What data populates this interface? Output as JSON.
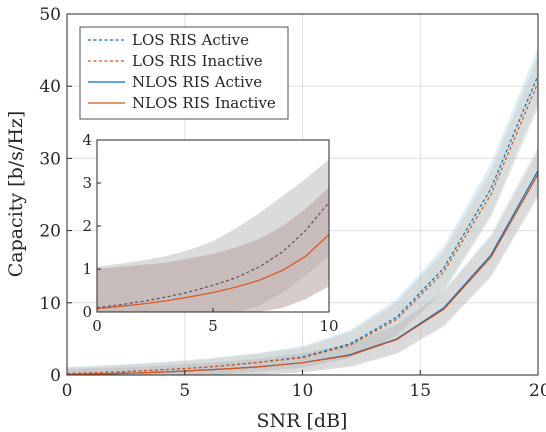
{
  "chart_data": [
    {
      "type": "line",
      "role": "main",
      "xlabel": "SNR [dB]",
      "ylabel": "Capacity [b/s/Hz]",
      "xlim": [
        0,
        20
      ],
      "ylim": [
        0,
        50
      ],
      "xticks": [
        0,
        5,
        10,
        15,
        20
      ],
      "yticks": [
        0,
        10,
        20,
        30,
        40,
        50
      ],
      "xtick_labels": [
        "0",
        "5",
        "10",
        "15",
        "20"
      ],
      "ytick_labels": [
        "0",
        "10",
        "20",
        "30",
        "40",
        "50"
      ],
      "grid": true,
      "legend_position": "top-left",
      "x": [
        0,
        2,
        4,
        6,
        8,
        10,
        12,
        14,
        16,
        18,
        20
      ],
      "series": [
        {
          "name": "LOS RIS Active",
          "color": "#0072BD",
          "style": "dashed",
          "values": [
            0.2,
            0.4,
            0.7,
            1.1,
            1.7,
            2.5,
            4.3,
            8.0,
            14.8,
            25.8,
            41.5
          ],
          "band_width": [
            0.9,
            1.0,
            1.1,
            1.2,
            1.3,
            1.5,
            1.9,
            2.5,
            3.0,
            3.5,
            3.8
          ]
        },
        {
          "name": "LOS RIS Inactive",
          "color": "#D95319",
          "style": "dashed",
          "values": [
            0.2,
            0.4,
            0.7,
            1.1,
            1.7,
            2.4,
            4.1,
            7.7,
            14.3,
            25.0,
            40.5
          ],
          "band_width": [
            0.8,
            0.9,
            1.0,
            1.1,
            1.2,
            1.4,
            1.8,
            2.3,
            2.8,
            3.2,
            3.6
          ]
        },
        {
          "name": "NLOS RIS Active",
          "color": "#0072BD",
          "style": "solid",
          "values": [
            0.1,
            0.2,
            0.4,
            0.7,
            1.1,
            1.7,
            2.8,
            5.0,
            9.3,
            16.6,
            28.3
          ],
          "band_width": [
            0.7,
            0.8,
            0.9,
            1.0,
            1.1,
            1.3,
            1.6,
            2.0,
            2.4,
            2.9,
            3.3
          ]
        },
        {
          "name": "NLOS RIS Inactive",
          "color": "#D95319",
          "style": "solid",
          "values": [
            0.1,
            0.2,
            0.4,
            0.7,
            1.1,
            1.7,
            2.7,
            4.9,
            9.1,
            16.3,
            27.8
          ],
          "band_width": [
            0.7,
            0.8,
            0.9,
            1.0,
            1.1,
            1.3,
            1.6,
            2.0,
            2.4,
            2.8,
            3.2
          ]
        }
      ]
    },
    {
      "type": "line",
      "role": "inset",
      "xlim": [
        0,
        10
      ],
      "ylim": [
        0,
        4
      ],
      "xticks": [
        0,
        5,
        10
      ],
      "yticks": [
        0,
        1,
        2,
        3,
        4
      ],
      "xtick_labels": [
        "0",
        "5",
        "10"
      ],
      "ytick_labels": [
        "0",
        "1",
        "2",
        "3",
        "4"
      ],
      "grid": false,
      "x": [
        0,
        1,
        2,
        3,
        4,
        5,
        6,
        7,
        8,
        9,
        10
      ],
      "series": [
        {
          "name": "LOS",
          "color": "#555555",
          "style": "dashed",
          "values": [
            0.1,
            0.17,
            0.25,
            0.35,
            0.47,
            0.62,
            0.8,
            1.05,
            1.4,
            1.9,
            2.55
          ],
          "lower": [
            0,
            0,
            0,
            0,
            0,
            0,
            0,
            0.15,
            0.45,
            0.85,
            1.3
          ],
          "upper": [
            1.05,
            1.12,
            1.2,
            1.3,
            1.45,
            1.65,
            1.95,
            2.3,
            2.7,
            3.1,
            3.55
          ]
        },
        {
          "name": "NLOS",
          "color": "#D95319",
          "style": "solid",
          "values": [
            0.08,
            0.13,
            0.19,
            0.26,
            0.35,
            0.45,
            0.58,
            0.74,
            0.97,
            1.3,
            1.8
          ],
          "lower": [
            0,
            0,
            0,
            0,
            0,
            0,
            0,
            0,
            0.1,
            0.3,
            0.6
          ],
          "upper": [
            1.0,
            1.05,
            1.1,
            1.15,
            1.25,
            1.35,
            1.5,
            1.7,
            2.0,
            2.4,
            2.9
          ]
        }
      ]
    }
  ]
}
